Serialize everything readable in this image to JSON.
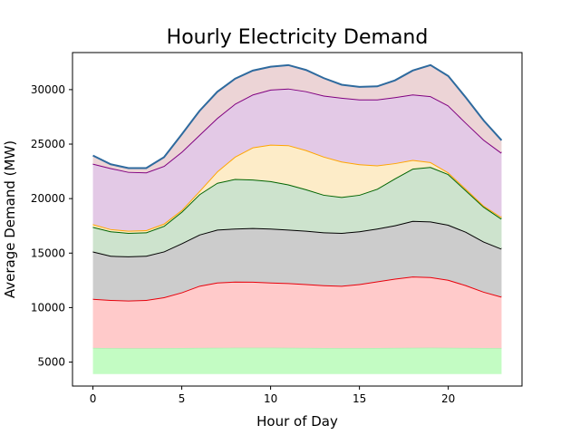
{
  "chart_data": {
    "type": "area",
    "title": "Hourly Electricity Demand",
    "xlabel": "Hour of Day",
    "ylabel": "Average Demand (MW)",
    "xlim": [
      -1.15,
      24.15
    ],
    "ylim": [
      2800,
      33400
    ],
    "x_ticks": [
      0,
      5,
      10,
      15,
      20
    ],
    "y_ticks": [
      5000,
      10000,
      15000,
      20000,
      25000,
      30000
    ],
    "grid": false,
    "legend": "none",
    "x": [
      0,
      1,
      2,
      3,
      4,
      5,
      6,
      7,
      8,
      9,
      10,
      11,
      12,
      13,
      14,
      15,
      16,
      17,
      18,
      19,
      20,
      21,
      22,
      23
    ],
    "baseline": [
      3900,
      3900,
      3900,
      3900,
      3900,
      3900,
      3900,
      3900,
      3900,
      3900,
      3900,
      3900,
      3900,
      3900,
      3900,
      3900,
      3900,
      3900,
      3900,
      3900,
      3900,
      3900,
      3900,
      3900
    ],
    "series": [
      {
        "line_color": "#b0e8b0",
        "fill_color": "#c3fcc3",
        "values": [
          6300,
          6280,
          6270,
          6270,
          6280,
          6290,
          6300,
          6310,
          6320,
          6320,
          6320,
          6310,
          6300,
          6290,
          6280,
          6280,
          6290,
          6300,
          6310,
          6320,
          6310,
          6300,
          6290,
          6280
        ]
      },
      {
        "line_color": "#e8000b",
        "fill_color": "#ffcaca",
        "values": [
          10800,
          10700,
          10650,
          10700,
          10950,
          11400,
          12000,
          12300,
          12380,
          12370,
          12300,
          12250,
          12150,
          12050,
          12000,
          12150,
          12400,
          12650,
          12850,
          12800,
          12550,
          12050,
          11450,
          11000
        ]
      },
      {
        "line_color": "#000000",
        "fill_color": "#cccccc",
        "values": [
          15150,
          14750,
          14700,
          14750,
          15150,
          15900,
          16700,
          17150,
          17250,
          17300,
          17250,
          17150,
          17050,
          16900,
          16850,
          17000,
          17250,
          17550,
          17950,
          17900,
          17600,
          16950,
          16050,
          15400
        ]
      },
      {
        "line_color": "#006400",
        "fill_color": "#cde3cd",
        "values": [
          17400,
          17000,
          16850,
          16900,
          17500,
          18800,
          20400,
          21450,
          21800,
          21750,
          21600,
          21300,
          20850,
          20350,
          20150,
          20350,
          20900,
          21850,
          22750,
          22900,
          22250,
          20750,
          19250,
          18150
        ]
      },
      {
        "line_color": "#ffa500",
        "fill_color": "#fdecc8",
        "values": [
          17650,
          17200,
          17050,
          17100,
          17700,
          18950,
          20700,
          22500,
          23850,
          24700,
          24950,
          24900,
          24450,
          23850,
          23400,
          23150,
          23050,
          23250,
          23550,
          23350,
          22400,
          20900,
          19350,
          18300
        ]
      },
      {
        "line_color": "#800080",
        "fill_color": "#e3c9e6",
        "values": [
          23200,
          22800,
          22450,
          22400,
          23000,
          24300,
          25850,
          27400,
          28700,
          29550,
          30000,
          30100,
          29850,
          29450,
          29250,
          29100,
          29100,
          29300,
          29550,
          29400,
          28550,
          26950,
          25400,
          24200
        ]
      },
      {
        "line_color": "#2e6a9e",
        "fill_color": "#ecd4d6",
        "values": [
          23950,
          23150,
          22800,
          22800,
          23800,
          25900,
          28050,
          29800,
          31000,
          31750,
          32100,
          32250,
          31800,
          31050,
          30450,
          30250,
          30300,
          30850,
          31750,
          32250,
          31250,
          29250,
          27150,
          25350
        ]
      }
    ]
  }
}
